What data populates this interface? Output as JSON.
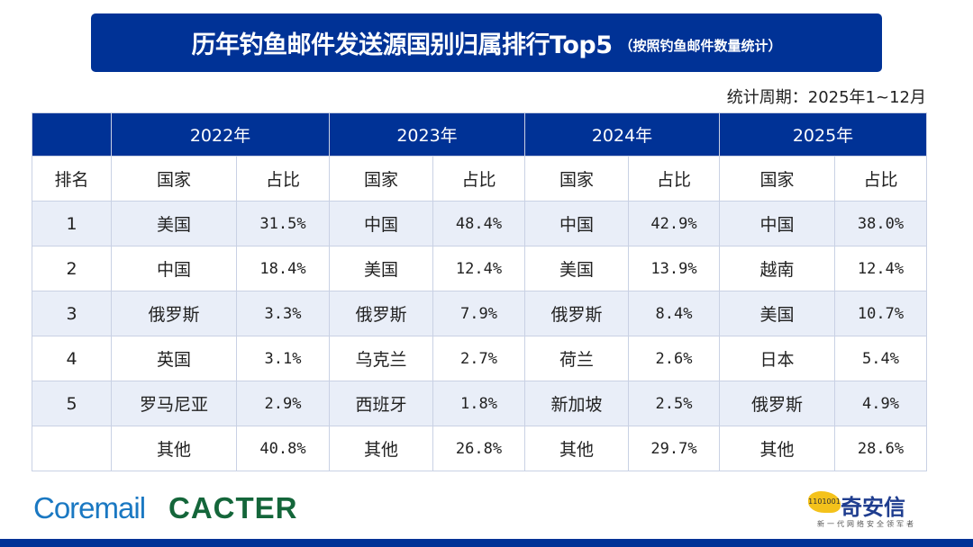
{
  "title": {
    "main": "历年钓鱼邮件发送源国别归属排行Top5",
    "sub": "（按照钓鱼邮件数量统计）"
  },
  "period": "统计周期：2025年1~12月",
  "table": {
    "years": [
      "2022年",
      "2023年",
      "2024年",
      "2025年"
    ],
    "subheaders": {
      "rank": "排名",
      "country": "国家",
      "share": "占比"
    },
    "rows": [
      {
        "rank": "1",
        "cells": [
          [
            "美国",
            "31.5%"
          ],
          [
            "中国",
            "48.4%"
          ],
          [
            "中国",
            "42.9%"
          ],
          [
            "中国",
            "38.0%"
          ]
        ]
      },
      {
        "rank": "2",
        "cells": [
          [
            "中国",
            "18.4%"
          ],
          [
            "美国",
            "12.4%"
          ],
          [
            "美国",
            "13.9%"
          ],
          [
            "越南",
            "12.4%"
          ]
        ]
      },
      {
        "rank": "3",
        "cells": [
          [
            "俄罗斯",
            "3.3%"
          ],
          [
            "俄罗斯",
            "7.9%"
          ],
          [
            "俄罗斯",
            "8.4%"
          ],
          [
            "美国",
            "10.7%"
          ]
        ]
      },
      {
        "rank": "4",
        "cells": [
          [
            "英国",
            "3.1%"
          ],
          [
            "乌克兰",
            "2.7%"
          ],
          [
            "荷兰",
            "2.6%"
          ],
          [
            "日本",
            "5.4%"
          ]
        ]
      },
      {
        "rank": "5",
        "cells": [
          [
            "罗马尼亚",
            "2.9%"
          ],
          [
            "西班牙",
            "1.8%"
          ],
          [
            "新加坡",
            "2.5%"
          ],
          [
            "俄罗斯",
            "4.9%"
          ]
        ]
      },
      {
        "rank": "",
        "cells": [
          [
            "其他",
            "40.8%"
          ],
          [
            "其他",
            "26.8%"
          ],
          [
            "其他",
            "29.7%"
          ],
          [
            "其他",
            "28.6%"
          ]
        ]
      }
    ]
  },
  "logos": {
    "coremail": "Coremail",
    "cacter": "CACTER",
    "qax": "奇安信",
    "qax_slogan": "新一代网络安全领军者",
    "qax_tiger_digits": "1101001"
  },
  "colors": {
    "header": "#003296",
    "row_alt": "#e9eef8",
    "coremail": "#1a78c2",
    "cacter": "#14663a"
  }
}
